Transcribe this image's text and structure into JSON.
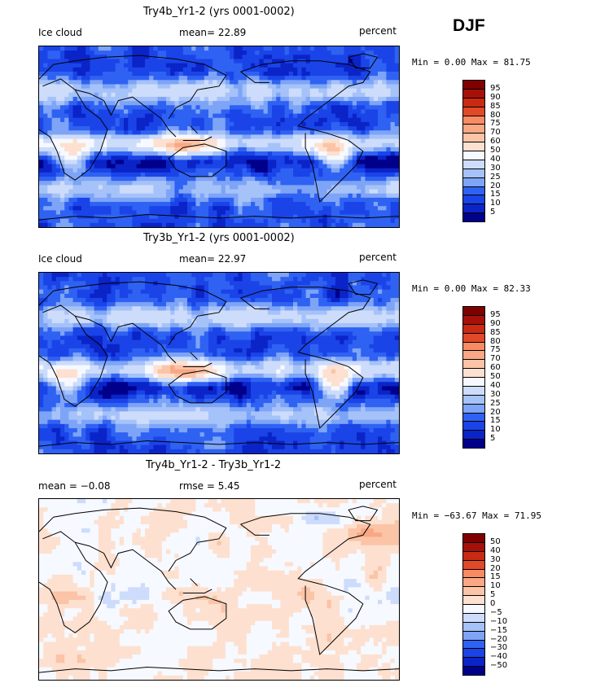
{
  "season": "DJF",
  "colors": {
    "abs_scale": [
      "#00008b",
      "#0a24c8",
      "#1a44e8",
      "#2f62f2",
      "#5484f5",
      "#7ea4f7",
      "#a5c2f9",
      "#cddcfb",
      "#f6f9ff",
      "#fde0cf",
      "#fbc4a7",
      "#f9a784",
      "#f78b62",
      "#f26b43",
      "#e24928",
      "#c92a12",
      "#a51108",
      "#800000"
    ],
    "diff_scale": [
      "#00008b",
      "#0a24c8",
      "#1a44e8",
      "#2f62f2",
      "#5484f5",
      "#7ea4f7",
      "#a5c2f9",
      "#cddcfb",
      "#f6f9ff",
      "#fde0cf",
      "#fbc4a7",
      "#f9a784",
      "#f78b62",
      "#f26b43",
      "#e24928",
      "#c92a12",
      "#a51108",
      "#800000"
    ],
    "coast": "#000000"
  },
  "panels": [
    {
      "title": "Try4b_Yr1-2 (yrs 0001-0002)",
      "left_label": "Ice cloud",
      "mid_label": "mean=   22.89",
      "units": "percent",
      "minmax": "Min =    0.00 Max =  81.75",
      "scale": "abs"
    },
    {
      "title": "Try3b_Yr1-2 (yrs 0001-0002)",
      "left_label": "Ice cloud",
      "mid_label": "mean=   22.97",
      "units": "percent",
      "minmax": "Min =    0.00 Max =  82.33",
      "scale": "abs"
    },
    {
      "title": "Try4b_Yr1-2 - Try3b_Yr1-2",
      "left_label": "mean =   −0.08",
      "mid_label": "rmse =    5.45",
      "units": "percent",
      "minmax": "Min = −63.67 Max =  71.95",
      "scale": "diff"
    }
  ],
  "chart_data": [
    {
      "type": "heatmap",
      "title": "Try4b_Yr1-2 (yrs 0001-0002)",
      "variable": "Ice cloud",
      "units": "percent",
      "mean": 22.89,
      "min": 0.0,
      "max": 81.75,
      "colorbar_levels": [
        "5",
        "10",
        "15",
        "20",
        "25",
        "30",
        "40",
        "50",
        "60",
        "70",
        "75",
        "80",
        "85",
        "90",
        "95"
      ]
    },
    {
      "type": "heatmap",
      "title": "Try3b_Yr1-2 (yrs 0001-0002)",
      "variable": "Ice cloud",
      "units": "percent",
      "mean": 22.97,
      "min": 0.0,
      "max": 82.33,
      "colorbar_levels": [
        "5",
        "10",
        "15",
        "20",
        "25",
        "30",
        "40",
        "50",
        "60",
        "70",
        "75",
        "80",
        "85",
        "90",
        "95"
      ]
    },
    {
      "type": "heatmap",
      "title": "Try4b_Yr1-2 - Try3b_Yr1-2",
      "units": "percent",
      "mean": -0.08,
      "rmse": 5.45,
      "min": -63.67,
      "max": 71.95,
      "colorbar_levels": [
        "−50",
        "−40",
        "−30",
        "−20",
        "−15",
        "−10",
        "−5",
        "0",
        "5",
        "10",
        "15",
        "20",
        "30",
        "40",
        "50"
      ]
    }
  ]
}
